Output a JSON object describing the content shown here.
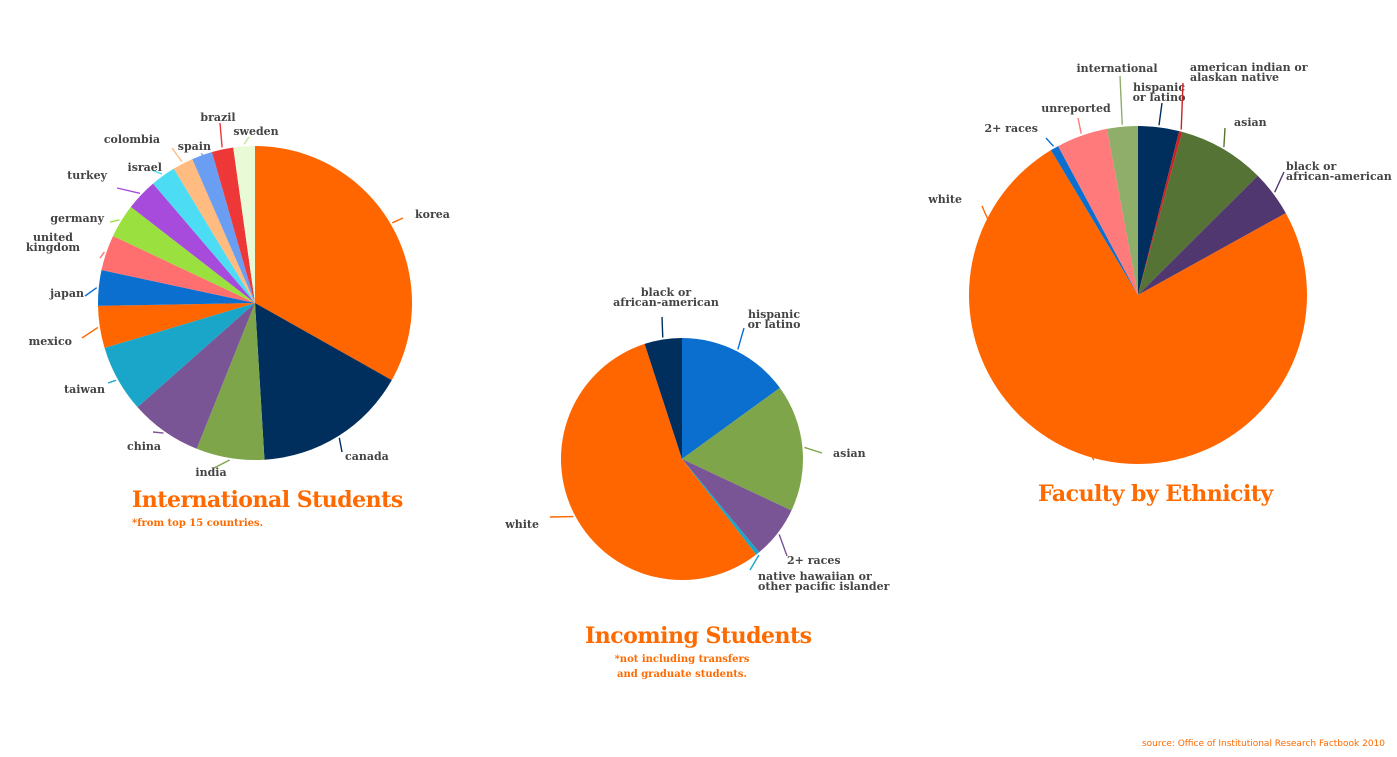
{
  "chart_data": [
    {
      "type": "pie",
      "title": "International Students",
      "subtitle": "*from top 15 countries.",
      "slices": [
        {
          "label": "korea",
          "value": 34.5,
          "color": "#ff6600"
        },
        {
          "label": "canada",
          "value": 16.5,
          "color": "#002e5d"
        },
        {
          "label": "india",
          "value": 7.3,
          "color": "#7fa54a"
        },
        {
          "label": "china",
          "value": 7.7,
          "color": "#7a5595"
        },
        {
          "label": "taiwan",
          "value": 7.2,
          "color": "#1aa6c8"
        },
        {
          "label": "mexico",
          "value": 4.5,
          "color": "#ff6600"
        },
        {
          "label": "japan",
          "value": 3.8,
          "color": "#0a6fcf"
        },
        {
          "label": "united kingdom",
          "value": 3.8,
          "color": "#ff6f6f"
        },
        {
          "label": "germany",
          "value": 3.6,
          "color": "#9ae03e"
        },
        {
          "label": "turkey",
          "value": 3.4,
          "color": "#a64bdc"
        },
        {
          "label": "israel",
          "value": 2.7,
          "color": "#4cdcf4"
        },
        {
          "label": "colombia",
          "value": 2.2,
          "color": "#ffbb80"
        },
        {
          "label": "spain",
          "value": 2.2,
          "color": "#6a9ef3"
        },
        {
          "label": "brazil",
          "value": 2.3,
          "color": "#ee3838"
        },
        {
          "label": "sweden",
          "value": 2.3,
          "color": "#e9fbd6"
        }
      ]
    },
    {
      "type": "pie",
      "title": "Incoming Students",
      "subtitle_lines": [
        "*not including transfers",
        "and graduate students."
      ],
      "slices": [
        {
          "label": "hispanic or latino",
          "value": 15.0,
          "color": "#0a6fcf"
        },
        {
          "label": "asian",
          "value": 17.0,
          "color": "#7fa54a"
        },
        {
          "label": "2+ races",
          "value": 7.0,
          "color": "#7a5595"
        },
        {
          "label": "native hawaiian or other pacific islander",
          "value": 0.5,
          "color": "#1aa6c8"
        },
        {
          "label": "white",
          "value": 55.5,
          "color": "#ff6600"
        },
        {
          "label": "black or african-american",
          "value": 5.0,
          "color": "#002e5d"
        }
      ]
    },
    {
      "type": "pie",
      "title": "Faculty by Ethnicity",
      "slices": [
        {
          "label": "hispanic or latino",
          "value": 4.0,
          "color": "#002e5d"
        },
        {
          "label": "american indian or alaskan native",
          "value": 0.3,
          "color": "#cc2222"
        },
        {
          "label": "asian",
          "value": 8.5,
          "color": "#557334"
        },
        {
          "label": "black or african-american",
          "value": 4.5,
          "color": "#503770"
        },
        {
          "label": "white",
          "value": 76.0,
          "color": "#ff6600"
        },
        {
          "label": "2+ races",
          "value": 0.8,
          "color": "#0a6fcf"
        },
        {
          "label": "unreported",
          "value": 5.0,
          "color": "#ff7b7b"
        },
        {
          "label": "international",
          "value": 3.0,
          "color": "#8fae6a"
        }
      ]
    }
  ],
  "source": "source: Office of Institutional Research Factbook 2010"
}
